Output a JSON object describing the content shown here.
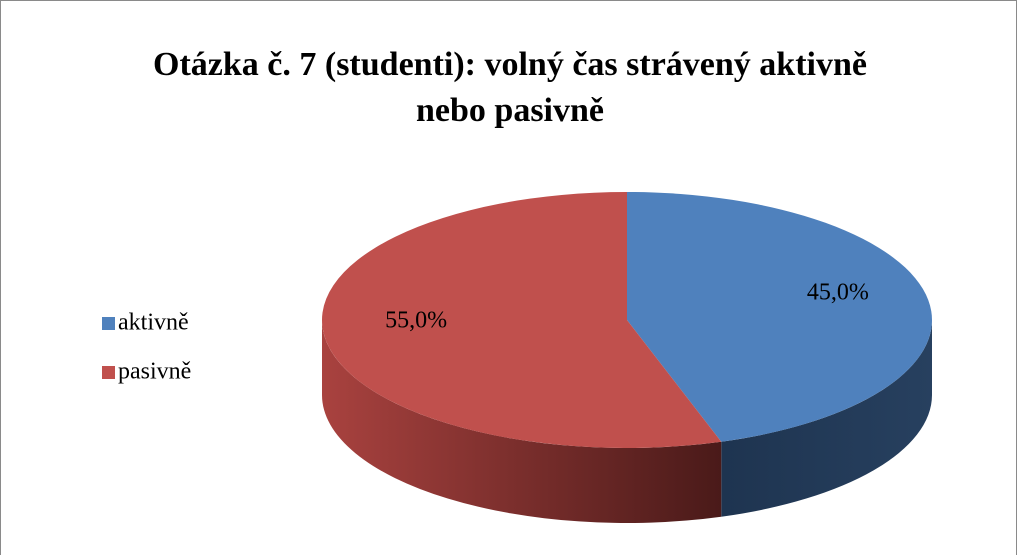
{
  "chart_data": {
    "type": "pie",
    "title": "Otázka č. 7 (studenti): volný čas strávený aktivně nebo pasivně",
    "categories": [
      "aktivně",
      "pasivně"
    ],
    "values": [
      45,
      55
    ],
    "value_labels": [
      "45,0%",
      "55,0%"
    ],
    "colors": [
      "#4f81bd",
      "#c0504d"
    ],
    "legend": "left"
  }
}
